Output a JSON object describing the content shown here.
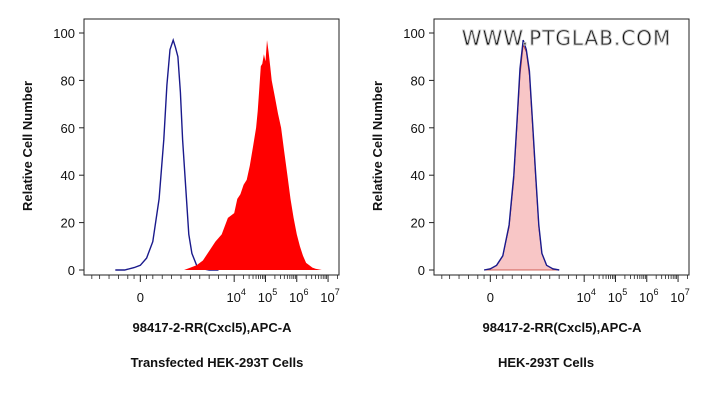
{
  "chart_data": [
    {
      "type": "area",
      "title": "Transfected HEK-293T Cells",
      "xlabel": "98417-2-RR(Cxcl5),APC-A",
      "ylabel": "Relative Cell Number",
      "y_ticks": [
        "0",
        "20",
        "40",
        "60",
        "80",
        "100"
      ],
      "ylim": [
        0,
        100
      ],
      "x_ticks": [
        {
          "base": "0",
          "exp": ""
        },
        {
          "base": "10",
          "exp": "4"
        },
        {
          "base": "10",
          "exp": "5"
        },
        {
          "base": "10",
          "exp": "6"
        },
        {
          "base": "10",
          "exp": "7"
        }
      ],
      "x_scale": "biexponential",
      "watermark": "",
      "series": [
        {
          "style": "outline",
          "color": "#1a1a8c",
          "x": [
            -0.8,
            -0.5,
            -0.2,
            0.0,
            0.2,
            0.4,
            0.6,
            0.75,
            0.85,
            0.95,
            1.05,
            1.12,
            1.2,
            1.28,
            1.35,
            1.45,
            1.55,
            1.65,
            1.8,
            2.0,
            2.2,
            2.5
          ],
          "y": [
            0,
            0,
            1,
            2,
            5,
            12,
            30,
            55,
            78,
            93,
            97,
            94,
            90,
            75,
            55,
            35,
            15,
            7,
            2,
            0.5,
            0,
            0
          ]
        },
        {
          "style": "filled",
          "color": "#ff0000",
          "x": [
            1.4,
            1.6,
            1.8,
            2.0,
            2.2,
            2.4,
            2.6,
            2.8,
            3.0,
            3.1,
            3.2,
            3.3,
            3.4,
            3.5,
            3.6,
            3.7,
            3.75,
            3.8,
            3.85,
            3.9,
            3.95,
            4.0,
            4.05,
            4.1,
            4.15,
            4.2,
            4.3,
            4.4,
            4.5,
            4.6,
            4.7,
            4.8,
            4.9,
            5.0,
            5.1,
            5.2,
            5.3,
            5.4,
            5.5,
            5.6,
            5.8,
            6.0
          ],
          "y": [
            0,
            1,
            2,
            4,
            8,
            12,
            15,
            22,
            24,
            30,
            32,
            36,
            38,
            44,
            52,
            60,
            67,
            76,
            86,
            87,
            91,
            88,
            97,
            92,
            86,
            80,
            73,
            66,
            60,
            50,
            40,
            30,
            22,
            15,
            10,
            6,
            3,
            2,
            1,
            0.5,
            0,
            0
          ]
        }
      ]
    },
    {
      "type": "area",
      "title": "HEK-293T Cells",
      "xlabel": "98417-2-RR(Cxcl5),APC-A",
      "ylabel": "Relative Cell Number",
      "y_ticks": [
        "0",
        "20",
        "40",
        "60",
        "80",
        "100"
      ],
      "ylim": [
        0,
        100
      ],
      "x_ticks": [
        {
          "base": "0",
          "exp": ""
        },
        {
          "base": "10",
          "exp": "4"
        },
        {
          "base": "10",
          "exp": "5"
        },
        {
          "base": "10",
          "exp": "6"
        },
        {
          "base": "10",
          "exp": "7"
        }
      ],
      "x_scale": "biexponential",
      "watermark": "WWW.PTGLAB.COM",
      "series": [
        {
          "style": "filled-light",
          "color": "#f08080",
          "x": [
            -0.2,
            0.0,
            0.2,
            0.4,
            0.6,
            0.75,
            0.85,
            0.95,
            1.05,
            1.15,
            1.25,
            1.35,
            1.45,
            1.55,
            1.65,
            1.8,
            2.0,
            2.2
          ],
          "y": [
            0,
            0.5,
            2,
            6,
            18,
            38,
            60,
            82,
            95,
            92,
            82,
            60,
            38,
            18,
            7,
            2,
            0.5,
            0
          ]
        },
        {
          "style": "outline",
          "color": "#1a1a8c",
          "x": [
            -0.2,
            0.0,
            0.2,
            0.4,
            0.6,
            0.75,
            0.85,
            0.95,
            1.05,
            1.15,
            1.25,
            1.35,
            1.45,
            1.55,
            1.65,
            1.8,
            2.0,
            2.2
          ],
          "y": [
            0,
            0.5,
            2,
            6,
            19,
            40,
            62,
            85,
            97,
            93,
            84,
            62,
            40,
            19,
            7,
            2,
            0.5,
            0
          ]
        }
      ]
    }
  ]
}
